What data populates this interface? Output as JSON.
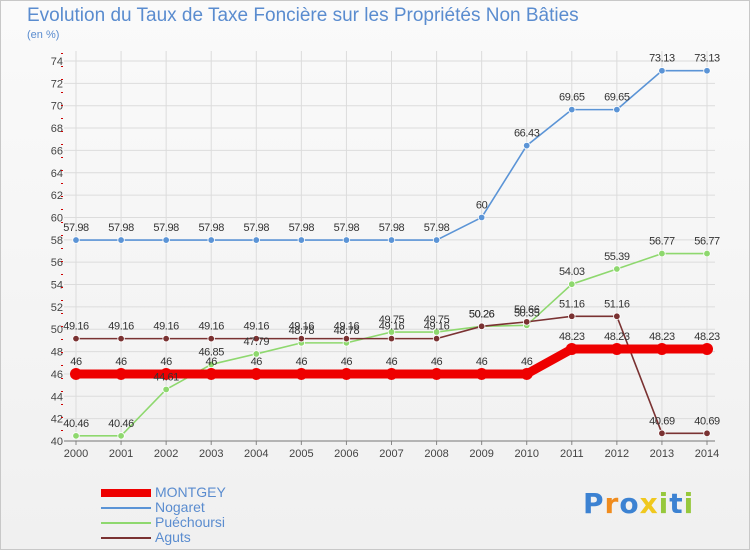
{
  "chart_data": {
    "type": "line",
    "title": "Evolution du Taux de Taxe Foncière sur les Propriétés Non Bâties",
    "ylabel": "(en %)",
    "xlabel": "",
    "categories": [
      "2000",
      "2001",
      "2002",
      "2003",
      "2004",
      "2005",
      "2006",
      "2007",
      "2008",
      "2009",
      "2010",
      "2011",
      "2012",
      "2013",
      "2014"
    ],
    "ylim": [
      40,
      74
    ],
    "yticks": [
      40,
      42,
      44,
      46,
      48,
      50,
      52,
      54,
      56,
      58,
      60,
      62,
      64,
      66,
      68,
      70,
      72,
      74
    ],
    "grid": true,
    "legend_position": "bottom-left",
    "series": [
      {
        "name": "Nogaret",
        "color": "#5b94d6",
        "values": [
          57.98,
          57.98,
          57.98,
          57.98,
          57.98,
          57.98,
          57.98,
          57.98,
          57.98,
          60,
          66.43,
          69.65,
          69.65,
          73.13,
          73.13
        ],
        "labels": [
          "57.98",
          "57.98",
          "57.98",
          "57.98",
          "57.98",
          "57.98",
          "57.98",
          "57.98",
          "57.98",
          "60",
          "66.43",
          "69.65",
          "69.65",
          "73.13",
          "73.13"
        ]
      },
      {
        "name": "Puéchoursi",
        "color": "#8ed86e",
        "values": [
          40.46,
          40.46,
          44.61,
          46.85,
          47.79,
          48.78,
          48.78,
          49.75,
          49.75,
          50.26,
          50.35,
          54.03,
          55.39,
          56.77,
          56.77
        ],
        "labels": [
          "40.46",
          "40.46",
          "44.61",
          "46.85",
          "47.79",
          "48.78",
          "48.78",
          "49.75",
          "49.75",
          "50.26",
          "50.35",
          "54.03",
          "55.39",
          "56.77",
          "56.77"
        ]
      },
      {
        "name": "Aguts",
        "color": "#7a3232",
        "values": [
          49.16,
          49.16,
          49.16,
          49.16,
          49.16,
          49.16,
          49.16,
          49.16,
          49.16,
          50.26,
          50.66,
          51.16,
          51.16,
          40.69,
          40.69
        ],
        "labels": [
          "49.16",
          "49.16",
          "49.16",
          "49.16",
          "49.16",
          "49.16",
          "49.16",
          "49.16",
          "49.16",
          "50.26",
          "50.66",
          "51.16",
          "51.16",
          "40.69",
          "40.69"
        ]
      },
      {
        "name": "MONTGEY",
        "color": "#ee0000",
        "values": [
          46,
          46,
          46,
          46,
          46,
          46,
          46,
          46,
          46,
          46,
          46,
          48.23,
          48.23,
          48.23,
          48.23
        ],
        "labels": [
          "46",
          "46",
          "46",
          "46",
          "46",
          "46",
          "46",
          "46",
          "46",
          "46",
          "46",
          "48.23",
          "48.23",
          "48.23",
          "48.23"
        ]
      }
    ],
    "legend": [
      {
        "name": "MONTGEY",
        "color": "#ee0000"
      },
      {
        "name": "Nogaret",
        "color": "#5b94d6"
      },
      {
        "name": "Puéchoursi",
        "color": "#8ed86e"
      },
      {
        "name": "Aguts",
        "color": "#7a3232"
      }
    ]
  },
  "brand": {
    "text": "Proxiti",
    "letter_colors": [
      "#3c82d2",
      "#f08c1e",
      "#3c82d2",
      "#f0c81e",
      "#96c83c",
      "#3c82d2",
      "#96c83c"
    ]
  }
}
